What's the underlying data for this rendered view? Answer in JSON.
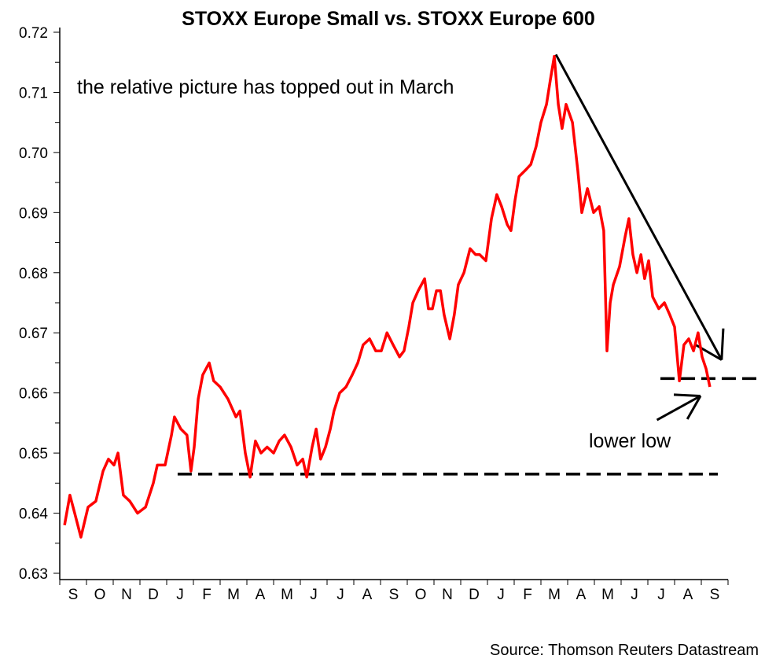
{
  "chart_data": {
    "type": "line",
    "title": "STOXX Europe Small vs. STOXX Europe 600",
    "source": "Source: Thomson Reuters Datastream",
    "xlabel": "",
    "ylabel": "",
    "ylim": [
      0.63,
      0.72
    ],
    "xlim": [
      0,
      25
    ],
    "yticks": [
      "0.63",
      "0.64",
      "0.65",
      "0.66",
      "0.67",
      "0.68",
      "0.69",
      "0.70",
      "0.71",
      "0.72"
    ],
    "month_labels": [
      "S",
      "O",
      "N",
      "D",
      "J",
      "F",
      "M",
      "A",
      "M",
      "J",
      "J",
      "A",
      "S",
      "O",
      "N",
      "D",
      "J",
      "F",
      "M",
      "A",
      "M",
      "J",
      "J",
      "A",
      "S"
    ],
    "grid": false,
    "legend": "none",
    "series": [
      {
        "name": "STOXX Europe Small / STOXX Europe 600",
        "color": "#ff0000",
        "x": [
          0.18,
          0.38,
          0.56,
          0.79,
          1.06,
          1.35,
          1.62,
          1.82,
          2.03,
          2.18,
          2.38,
          2.62,
          2.91,
          3.21,
          3.5,
          3.65,
          3.94,
          4.18,
          4.29,
          4.53,
          4.76,
          4.91,
          5.03,
          5.18,
          5.35,
          5.59,
          5.76,
          6.0,
          6.29,
          6.59,
          6.74,
          6.94,
          7.12,
          7.32,
          7.53,
          7.76,
          8.0,
          8.21,
          8.41,
          8.65,
          8.88,
          9.09,
          9.24,
          9.44,
          9.59,
          9.76,
          9.94,
          10.12,
          10.26,
          10.47,
          10.71,
          10.94,
          11.15,
          11.35,
          11.59,
          11.82,
          12.03,
          12.24,
          12.47,
          12.71,
          12.88,
          13.06,
          13.21,
          13.41,
          13.65,
          13.79,
          13.94,
          14.09,
          14.24,
          14.38,
          14.59,
          14.76,
          14.91,
          15.12,
          15.35,
          15.56,
          15.71,
          15.94,
          16.15,
          16.35,
          16.53,
          16.74,
          16.88,
          17.03,
          17.18,
          17.41,
          17.62,
          17.82,
          18.0,
          18.21,
          18.35,
          18.5,
          18.65,
          18.79,
          18.94,
          19.18,
          19.38,
          19.53,
          19.74,
          19.97,
          20.18,
          20.35,
          20.47,
          20.59,
          20.71,
          20.94,
          21.15,
          21.29,
          21.44,
          21.59,
          21.74,
          21.88,
          22.03,
          22.18,
          22.41,
          22.62,
          22.82,
          23.0,
          23.18,
          23.35,
          23.53,
          23.71,
          23.88,
          24.03,
          24.18,
          24.32
        ],
        "y": [
          0.638,
          0.643,
          0.64,
          0.636,
          0.641,
          0.642,
          0.647,
          0.649,
          0.648,
          0.65,
          0.643,
          0.642,
          0.64,
          0.641,
          0.645,
          0.648,
          0.648,
          0.653,
          0.656,
          0.654,
          0.653,
          0.647,
          0.651,
          0.659,
          0.663,
          0.665,
          0.662,
          0.661,
          0.659,
          0.656,
          0.657,
          0.65,
          0.646,
          0.652,
          0.65,
          0.651,
          0.65,
          0.652,
          0.653,
          0.651,
          0.648,
          0.649,
          0.646,
          0.651,
          0.654,
          0.649,
          0.651,
          0.654,
          0.657,
          0.66,
          0.661,
          0.663,
          0.665,
          0.668,
          0.669,
          0.667,
          0.667,
          0.67,
          0.668,
          0.666,
          0.667,
          0.671,
          0.675,
          0.677,
          0.679,
          0.674,
          0.674,
          0.677,
          0.677,
          0.673,
          0.669,
          0.673,
          0.678,
          0.68,
          0.684,
          0.683,
          0.683,
          0.682,
          0.689,
          0.693,
          0.691,
          0.688,
          0.687,
          0.692,
          0.696,
          0.697,
          0.698,
          0.701,
          0.705,
          0.708,
          0.712,
          0.716,
          0.708,
          0.704,
          0.708,
          0.705,
          0.697,
          0.69,
          0.694,
          0.69,
          0.691,
          0.687,
          0.667,
          0.675,
          0.678,
          0.681,
          0.686,
          0.689,
          0.683,
          0.68,
          0.683,
          0.679,
          0.682,
          0.676,
          0.674,
          0.675,
          0.673,
          0.671,
          0.662,
          0.668,
          0.669,
          0.667,
          0.67,
          0.666,
          0.664,
          0.661
        ]
      }
    ],
    "annotations": {
      "top_text": "the relative picture has topped out in March",
      "low_text": "lower low",
      "support_line": {
        "y": 0.6465,
        "x": [
          4.41,
          24.62
        ]
      },
      "recent_low_line": {
        "y": 0.6624,
        "x": [
          22.47,
          26.2
        ]
      },
      "trend_arrow": {
        "from": [
          18.56,
          0.7163
        ],
        "to": [
          24.76,
          0.6655
        ]
      },
      "lower_low_arrow": {
        "from": [
          22.34,
          0.6555
        ],
        "to": [
          23.97,
          0.6595
        ]
      }
    }
  }
}
